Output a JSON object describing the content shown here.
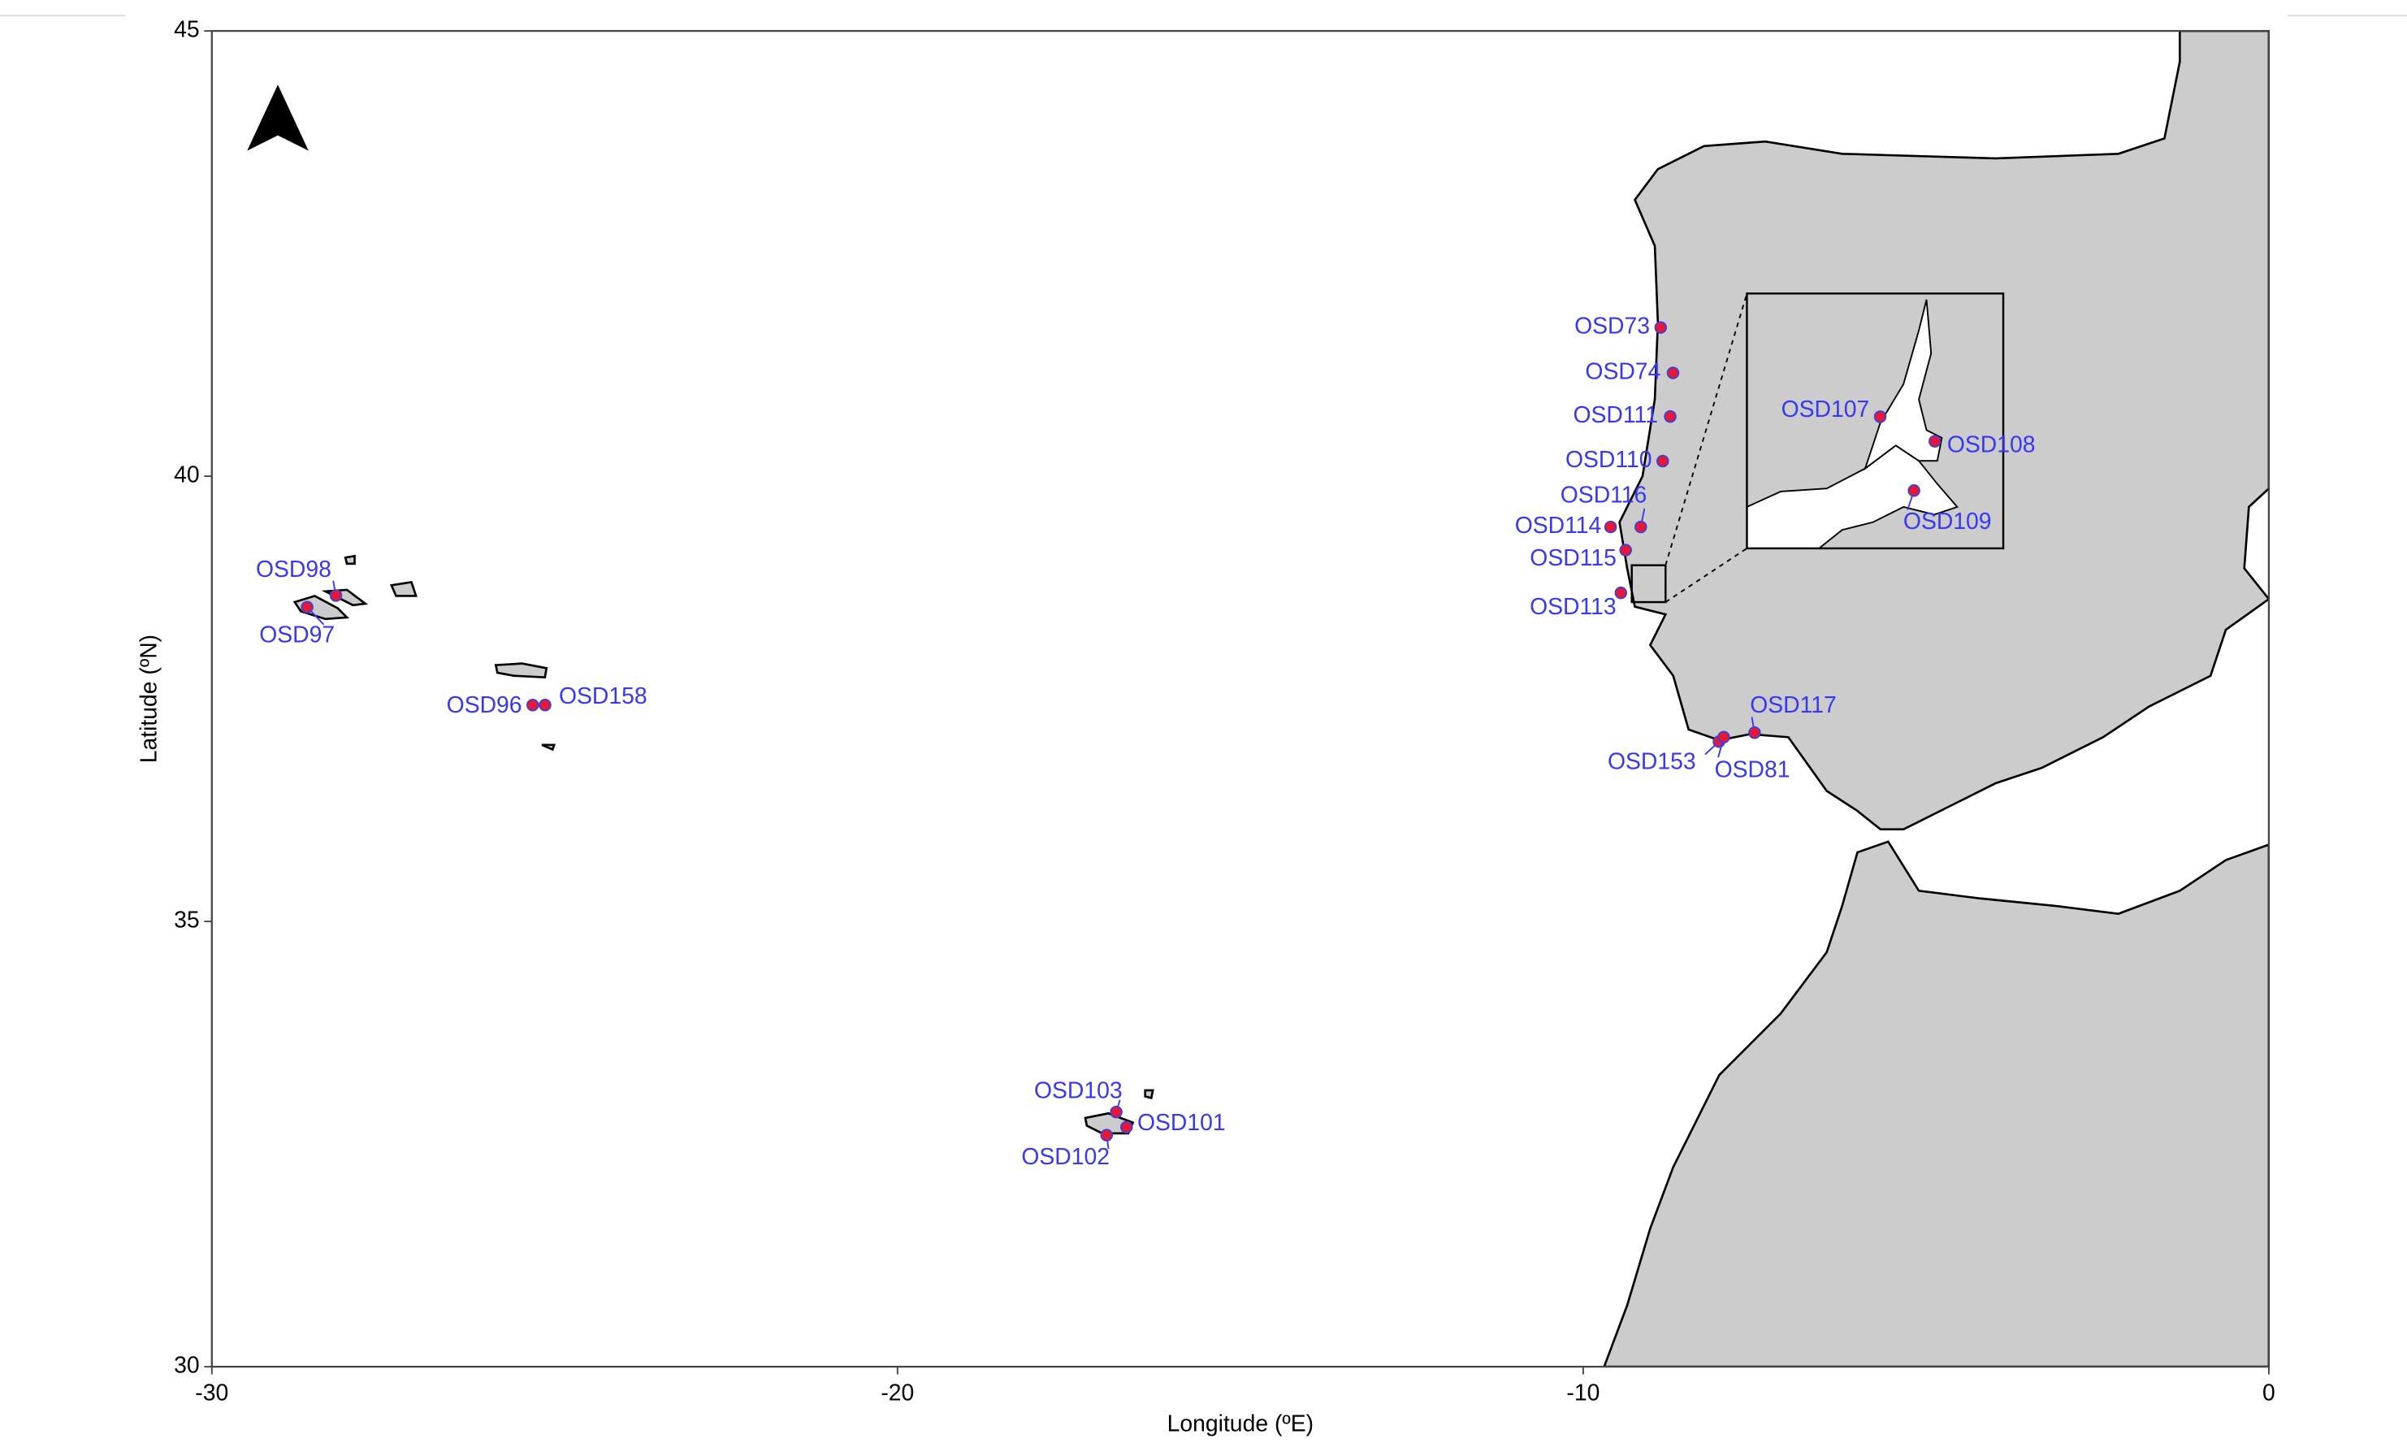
{
  "chart_data": {
    "type": "scatter",
    "xlabel": "Longitude (ºE)",
    "ylabel": "Latitude (ºN)",
    "xlim": [
      -30,
      0
    ],
    "ylim": [
      30,
      45
    ],
    "xticks": [
      -30,
      -20,
      -10,
      0
    ],
    "yticks": [
      30,
      35,
      40,
      45
    ],
    "point_color": "#e8173a",
    "label_color": "#3838f0",
    "points": {
      "labels": [
        "OSD73",
        "OSD74",
        "OSD111",
        "OSD110",
        "OSD116",
        "OSD114",
        "OSD115",
        "OSD113",
        "OSD117",
        "OSD153",
        "OSD81",
        "OSD98",
        "OSD97",
        "OSD96",
        "OSD158",
        "OSD103",
        "OSD101",
        "OSD102"
      ],
      "x": [
        -8.87,
        -8.69,
        -8.73,
        -8.84,
        -9.16,
        -9.6,
        -9.38,
        -9.45,
        -7.5,
        -8.02,
        -7.95,
        -28.19,
        -28.61,
        -25.32,
        -25.14,
        -16.81,
        -16.66,
        -16.95
      ],
      "y": [
        41.67,
        41.16,
        40.67,
        40.17,
        39.43,
        39.43,
        39.17,
        38.69,
        37.12,
        37.02,
        37.07,
        38.66,
        38.53,
        37.43,
        37.43,
        32.86,
        32.69,
        32.6
      ]
    },
    "inset": {
      "labels": [
        "OSD107",
        "OSD108",
        "OSD109"
      ],
      "x": [
        -9.035,
        -8.93,
        -8.97
      ],
      "y": [
        38.8,
        38.76,
        38.68
      ]
    }
  }
}
